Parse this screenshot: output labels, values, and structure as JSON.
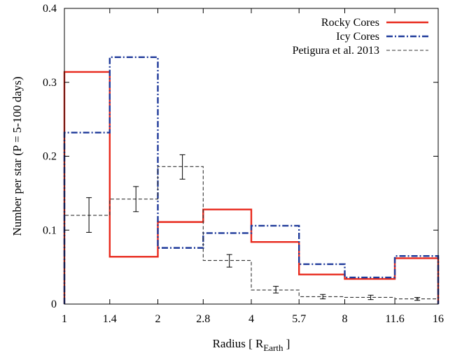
{
  "chart_data": {
    "type": "line",
    "title": "",
    "xlabel": "Radius  [ R",
    "xlabel_sub": "Earth",
    "xlabel_end": " ]",
    "ylabel": "Number per star (P = 5-100 days)",
    "x_scale": "log",
    "xlim": [
      1,
      16
    ],
    "ylim": [
      0,
      0.4
    ],
    "x_ticks": [
      {
        "value": 1,
        "label": "1"
      },
      {
        "value": 1.4,
        "label": "1.4"
      },
      {
        "value": 2,
        "label": "2"
      },
      {
        "value": 2.8,
        "label": "2.8"
      },
      {
        "value": 4,
        "label": "4"
      },
      {
        "value": 5.7,
        "label": "5.7"
      },
      {
        "value": 8,
        "label": "8"
      },
      {
        "value": 11.6,
        "label": "11.6"
      },
      {
        "value": 16,
        "label": "16"
      }
    ],
    "y_ticks": [
      {
        "value": 0,
        "label": "0"
      },
      {
        "value": 0.1,
        "label": "0.1"
      },
      {
        "value": 0.2,
        "label": "0.2"
      },
      {
        "value": 0.3,
        "label": "0.3"
      },
      {
        "value": 0.4,
        "label": "0.4"
      }
    ],
    "bin_edges": [
      1,
      1.4,
      2,
      2.8,
      4,
      5.7,
      8,
      11.6,
      16
    ],
    "grid": false,
    "legend_position": "top-right",
    "series": [
      {
        "name": "Rocky Cores",
        "style": "solid",
        "color": "#e8291c",
        "values": [
          0.314,
          0.064,
          0.111,
          0.128,
          0.084,
          0.04,
          0.034,
          0.062
        ]
      },
      {
        "name": "Icy Cores",
        "style": "dashdot",
        "color": "#1f3a9a",
        "values": [
          0.232,
          0.334,
          0.076,
          0.096,
          0.106,
          0.054,
          0.036,
          0.065
        ]
      },
      {
        "name": "Petigura et al. 2013",
        "style": "dashed",
        "color": "#333333",
        "values": [
          0.12,
          0.142,
          0.186,
          0.059,
          0.019,
          0.01,
          0.009,
          0.007
        ],
        "error_bars": [
          {
            "x": 1.2,
            "y": 0.12,
            "low": 0.097,
            "high": 0.144
          },
          {
            "x": 1.7,
            "y": 0.142,
            "low": 0.125,
            "high": 0.159
          },
          {
            "x": 2.4,
            "y": 0.186,
            "low": 0.169,
            "high": 0.202
          },
          {
            "x": 3.4,
            "y": 0.058,
            "low": 0.05,
            "high": 0.067
          },
          {
            "x": 4.8,
            "y": 0.019,
            "low": 0.015,
            "high": 0.024
          },
          {
            "x": 6.8,
            "y": 0.01,
            "low": 0.007,
            "high": 0.013
          },
          {
            "x": 9.7,
            "y": 0.009,
            "low": 0.006,
            "high": 0.012
          },
          {
            "x": 13.7,
            "y": 0.007,
            "low": 0.005,
            "high": 0.009
          }
        ]
      }
    ]
  }
}
